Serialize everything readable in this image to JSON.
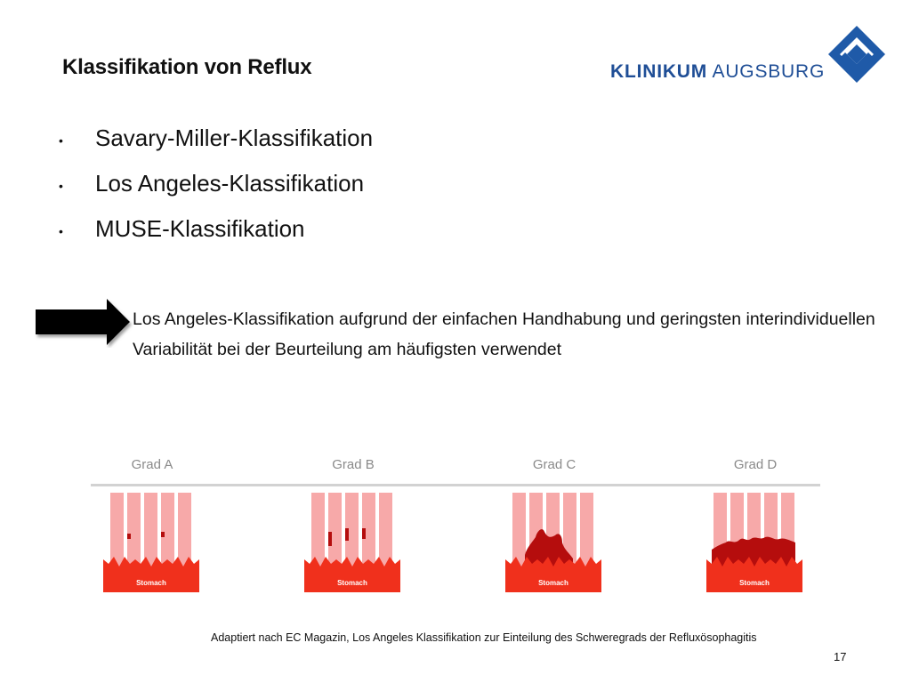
{
  "title": "Klassifikation von Reflux",
  "logo": {
    "word1": "KLINIKUM",
    "word2": " AUGSBURG",
    "color": "#1f4e96"
  },
  "bullets": [
    "Savary-Miller-Klassifikation",
    "Los Angeles-Klassifikation",
    "MUSE-Klassifikation"
  ],
  "note": "Los Angeles-Klassifikation aufgrund der einfachen Handhabung und geringsten interindividuellen Variabilität bei der Beurteilung am häufigsten verwendet",
  "figure": {
    "grades": [
      {
        "label": "Grad A",
        "stomach_label": "Stomach"
      },
      {
        "label": "Grad B",
        "stomach_label": "Stomach"
      },
      {
        "label": "Grad C",
        "stomach_label": "Stomach"
      },
      {
        "label": "Grad D",
        "stomach_label": "Stomach"
      }
    ],
    "colors": {
      "mucosa": "#f7a9a9",
      "stomach": "#f0301c",
      "lesion": "#b50d0d"
    }
  },
  "caption": "Adaptiert nach EC Magazin, Los Angeles Klassifikation zur Einteilung des Schweregrads der Refluxösophagitis",
  "page_number": "17"
}
